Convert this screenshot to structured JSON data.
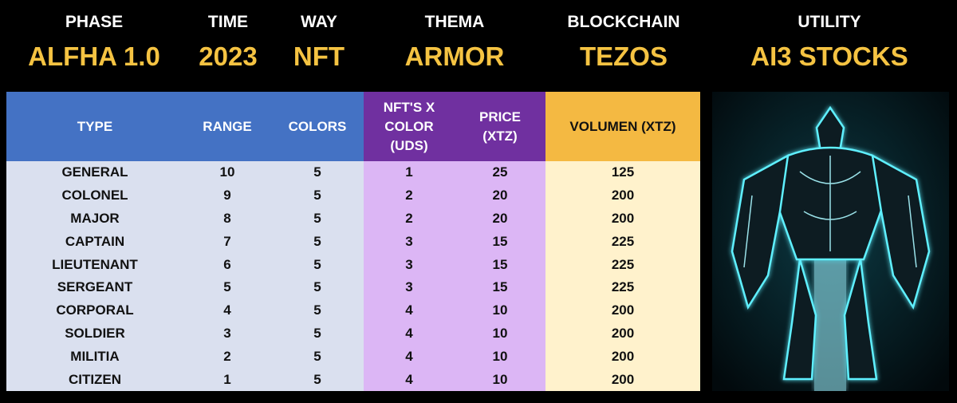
{
  "header": [
    {
      "label": "PHASE",
      "value": "ALFHA 1.0"
    },
    {
      "label": "TIME",
      "value": "2023"
    },
    {
      "label": "WAY",
      "value": "NFT"
    },
    {
      "label": "THEMA",
      "value": "ARMOR"
    },
    {
      "label": "BLOCKCHAIN",
      "value": "TEZOS"
    },
    {
      "label": "UTILITY",
      "value": "AI3 STOCKS"
    }
  ],
  "table": {
    "columns": [
      [
        "TYPE"
      ],
      [
        "RANGE"
      ],
      [
        "COLORS"
      ],
      [
        "NFT'S X",
        "COLOR",
        "(UDS)"
      ],
      [
        "PRICE",
        "(XTZ)"
      ],
      [
        "VOLUMEN (XTZ)"
      ]
    ],
    "rows": [
      [
        "GENERAL",
        10,
        5,
        1,
        25,
        125
      ],
      [
        "COLONEL",
        9,
        5,
        2,
        20,
        200
      ],
      [
        "MAJOR",
        8,
        5,
        2,
        20,
        200
      ],
      [
        "CAPTAIN",
        7,
        5,
        3,
        15,
        225
      ],
      [
        "LIEUTENANT",
        6,
        5,
        3,
        15,
        225
      ],
      [
        "SERGEANT",
        5,
        5,
        3,
        15,
        225
      ],
      [
        "CORPORAL",
        4,
        5,
        4,
        10,
        200
      ],
      [
        "SOLDIER",
        3,
        5,
        4,
        10,
        200
      ],
      [
        "MILITIA",
        2,
        5,
        4,
        10,
        200
      ],
      [
        "CITIZEN",
        1,
        5,
        4,
        10,
        200
      ]
    ]
  }
}
